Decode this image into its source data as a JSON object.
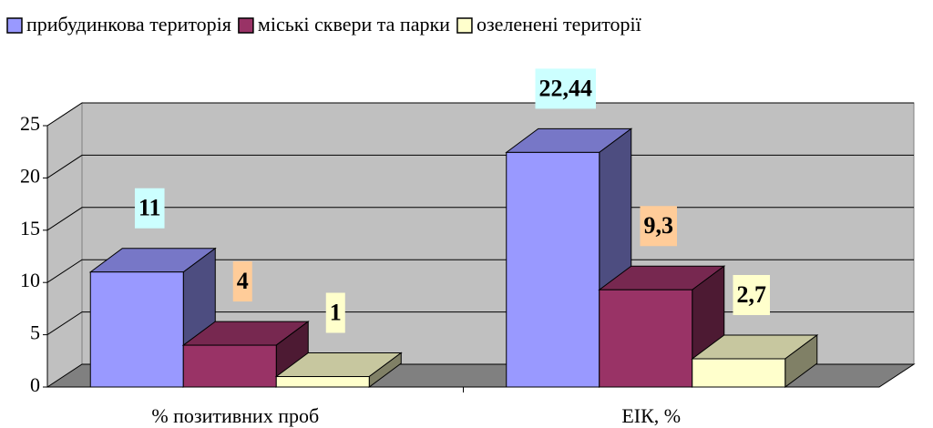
{
  "chart_data": {
    "type": "bar3d",
    "categories": [
      "% позитивних проб",
      "ЕІК, %"
    ],
    "series": [
      {
        "name": "прибудинкова територія",
        "color": "#9999ff",
        "label_color": "#ccffff",
        "values": [
          11,
          22.44
        ],
        "value_labels": [
          "11",
          "22,44"
        ]
      },
      {
        "name": "міські сквери та парки",
        "color": "#993366",
        "label_color": "#ffcc99",
        "values": [
          4,
          9.3
        ],
        "value_labels": [
          "4",
          "9,3"
        ]
      },
      {
        "name": "озеленені території",
        "color": "#ffffcc",
        "label_color": "#ffffcc",
        "values": [
          1,
          2.7
        ],
        "value_labels": [
          "1",
          "2,7"
        ]
      }
    ],
    "ylim": [
      0,
      25
    ],
    "yticks": [
      0,
      5,
      10,
      15,
      20,
      25
    ],
    "grid": true,
    "legend": "top"
  }
}
